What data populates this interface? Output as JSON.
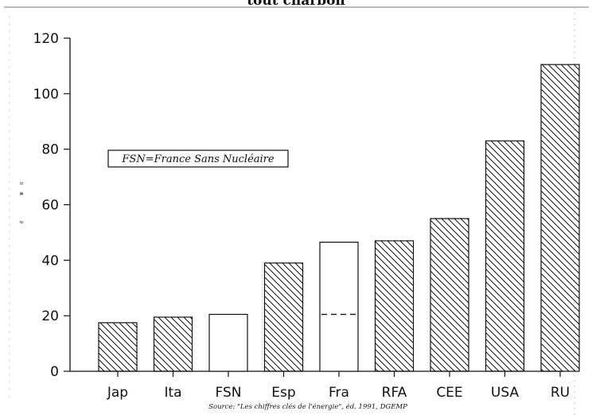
{
  "header": {
    "title": "tout charbon"
  },
  "chart_data": {
    "type": "bar",
    "categories": [
      "Jap",
      "Ita",
      "FSN",
      "Esp",
      "Fra",
      "RFA",
      "CEE",
      "USA",
      "RU"
    ],
    "values": [
      17.5,
      19.5,
      20.5,
      39,
      46.5,
      47,
      55,
      83,
      110.5
    ],
    "patterns": [
      "hatch",
      "hatch",
      "none",
      "hatch",
      "none",
      "hatch",
      "hatch",
      "hatch",
      "hatch"
    ],
    "reference_lines": [
      {
        "category": "Fra",
        "value": 20.5,
        "style": "dashed"
      }
    ],
    "yticks": [
      0,
      20,
      40,
      60,
      80,
      100,
      120
    ],
    "ylim": [
      0,
      120
    ],
    "ylabel": "",
    "xlabel": "",
    "annotation": "FSN=France Sans Nucléaire",
    "source": "Source: \"Les chiffres clés de l'énergie\", éd. 1991, DGEMP",
    "colors": {
      "ink": "#111111",
      "background": "#ffffff"
    }
  }
}
